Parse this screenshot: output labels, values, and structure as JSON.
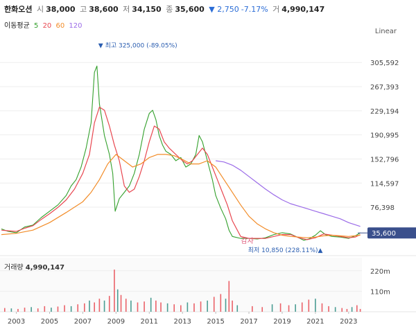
{
  "header": {
    "name": "한화오션",
    "open_label": "시",
    "open": "38,000",
    "high_label": "고",
    "high": "38,600",
    "low_label": "저",
    "low": "34,150",
    "close_label": "종",
    "close": "35,600",
    "change": "▼ 2,750",
    "change_pct": "-7.17%",
    "volume_label": "거",
    "volume": "4,990,147"
  },
  "ma_legend": {
    "label": "이동평균",
    "items": [
      {
        "text": "5",
        "color": "#33a02c"
      },
      {
        "text": "20",
        "color": "#e8464f"
      },
      {
        "text": "60",
        "color": "#f28c28"
      },
      {
        "text": "120",
        "color": "#9b6be8"
      }
    ]
  },
  "scale_label": "Linear",
  "colors": {
    "up": "#e8464f",
    "down": "#2a8c80",
    "current_tag": "#3a4f8c"
  },
  "chart_data": {
    "type": "line",
    "title": "",
    "y_ticks": [
      "305,592",
      "267,393",
      "229,194",
      "190,995",
      "152,796",
      "114,597",
      "76,398"
    ],
    "y_tick_values": [
      305592,
      267393,
      229194,
      190995,
      152796,
      114597,
      76398
    ],
    "ylim": [
      15000,
      330000
    ],
    "x_ticks": [
      "2003",
      "2005",
      "2007",
      "2009",
      "2011",
      "2013",
      "2015",
      "2017",
      "2019",
      "2021",
      "2023"
    ],
    "xlim": [
      2002.1,
      2023.8
    ],
    "current_price": 35600,
    "current_price_label": "35,600",
    "max_annotation": "최고 325,000 (-89.05%)",
    "max_point": {
      "x": 2007.85,
      "y": 325000
    },
    "min_annotation": "최저 10,850 (228.11%)",
    "min_point": {
      "x": 2020.2,
      "y": 10850
    },
    "event_label": "감자",
    "event_x": 2016.9,
    "series": [
      {
        "name": "5",
        "color": "#33a02c",
        "x": [
          2002.1,
          2002.5,
          2003.0,
          2003.5,
          2004.0,
          2004.5,
          2005.0,
          2005.5,
          2006.0,
          2006.3,
          2006.6,
          2006.9,
          2007.2,
          2007.5,
          2007.7,
          2007.85,
          2008.0,
          2008.3,
          2008.6,
          2008.8,
          2008.95,
          2009.2,
          2009.5,
          2009.8,
          2010.1,
          2010.4,
          2010.7,
          2011.0,
          2011.2,
          2011.4,
          2011.6,
          2011.8,
          2012.0,
          2012.3,
          2012.6,
          2012.9,
          2013.2,
          2013.5,
          2013.8,
          2014.0,
          2014.2,
          2014.5,
          2014.8,
          2015.0,
          2015.3,
          2015.6,
          2015.8,
          2016.0,
          2016.5,
          2017.0,
          2017.5,
          2018.0,
          2018.5,
          2019.0,
          2019.5,
          2020.0,
          2020.3,
          2020.6,
          2021.0,
          2021.3,
          2021.6,
          2022.0,
          2022.5,
          2023.0,
          2023.4,
          2023.7
        ],
        "values": [
          42000,
          38000,
          36000,
          45000,
          48000,
          60000,
          70000,
          80000,
          95000,
          110000,
          120000,
          140000,
          170000,
          210000,
          290000,
          300000,
          240000,
          190000,
          160000,
          130000,
          70000,
          90000,
          100000,
          110000,
          130000,
          160000,
          200000,
          225000,
          230000,
          215000,
          190000,
          175000,
          165000,
          160000,
          150000,
          155000,
          140000,
          145000,
          160000,
          190000,
          180000,
          150000,
          120000,
          95000,
          75000,
          58000,
          40000,
          30000,
          27000,
          27000,
          26000,
          28000,
          33000,
          36000,
          34000,
          28000,
          24000,
          26000,
          32000,
          39000,
          33000,
          30000,
          29000,
          27000,
          31000,
          35600
        ]
      },
      {
        "name": "20",
        "color": "#e8464f",
        "x": [
          2002.1,
          2002.5,
          2003.0,
          2003.5,
          2004.0,
          2004.5,
          2005.0,
          2005.5,
          2006.0,
          2006.5,
          2007.0,
          2007.4,
          2007.7,
          2008.0,
          2008.3,
          2008.6,
          2008.9,
          2009.2,
          2009.5,
          2009.8,
          2010.1,
          2010.4,
          2010.7,
          2011.0,
          2011.3,
          2011.6,
          2011.9,
          2012.2,
          2012.6,
          2013.0,
          2013.3,
          2013.6,
          2013.9,
          2014.2,
          2014.5,
          2014.8,
          2015.1,
          2015.4,
          2015.7,
          2016.0,
          2016.5,
          2017.0,
          2017.5,
          2018.0,
          2018.5,
          2019.0,
          2019.5,
          2020.0,
          2020.5,
          2021.0,
          2021.5,
          2022.0,
          2022.5,
          2023.0,
          2023.4,
          2023.7
        ],
        "values": [
          40000,
          39000,
          38000,
          43000,
          47000,
          57000,
          66000,
          76000,
          88000,
          105000,
          130000,
          160000,
          210000,
          235000,
          230000,
          205000,
          175000,
          150000,
          110000,
          100000,
          105000,
          125000,
          150000,
          180000,
          205000,
          200000,
          180000,
          170000,
          160000,
          150000,
          145000,
          150000,
          160000,
          170000,
          160000,
          140000,
          120000,
          100000,
          80000,
          55000,
          30000,
          27000,
          27000,
          27000,
          30000,
          33000,
          33000,
          28000,
          25000,
          28000,
          34000,
          32000,
          30000,
          28000,
          29000,
          33000
        ]
      },
      {
        "name": "60",
        "color": "#f28c28",
        "x": [
          2002.1,
          2003.0,
          2004.0,
          2005.0,
          2006.0,
          2007.0,
          2007.5,
          2008.0,
          2008.5,
          2009.0,
          2009.5,
          2010.0,
          2010.5,
          2011.0,
          2011.5,
          2012.0,
          2012.5,
          2013.0,
          2013.5,
          2014.0,
          2014.5,
          2015.0,
          2015.5,
          2016.0,
          2016.5,
          2017.0,
          2017.5,
          2018.0,
          2018.5,
          2019.0,
          2019.5,
          2020.0,
          2020.5,
          2021.0,
          2021.5,
          2022.0,
          2022.5,
          2023.0,
          2023.7
        ],
        "values": [
          33000,
          35000,
          40000,
          52000,
          68000,
          85000,
          100000,
          120000,
          145000,
          160000,
          150000,
          140000,
          145000,
          155000,
          160000,
          160000,
          158000,
          152000,
          145000,
          145000,
          150000,
          140000,
          120000,
          100000,
          80000,
          62000,
          50000,
          42000,
          36000,
          32000,
          30000,
          29000,
          28000,
          29000,
          31000,
          32000,
          31000,
          30000,
          32000
        ]
      },
      {
        "name": "120",
        "color": "#9b6be8",
        "x": [
          2015.0,
          2015.5,
          2016.0,
          2016.5,
          2017.0,
          2017.5,
          2018.0,
          2018.5,
          2019.0,
          2019.5,
          2020.0,
          2020.5,
          2021.0,
          2021.5,
          2022.0,
          2022.5,
          2023.0,
          2023.7
        ],
        "values": [
          150000,
          148000,
          143000,
          135000,
          125000,
          115000,
          105000,
          96000,
          88000,
          82000,
          78000,
          74000,
          70000,
          66000,
          62000,
          58000,
          52000,
          46000
        ]
      }
    ],
    "volume": {
      "label": "거래량",
      "value": "4,990,147",
      "y_ticks": [
        "220m",
        "110m"
      ],
      "y_tick_values": [
        220,
        110
      ],
      "ylim": [
        0,
        260
      ],
      "bars": [
        [
          2002.3,
          20
        ],
        [
          2002.7,
          18
        ],
        [
          2003.1,
          15
        ],
        [
          2003.5,
          22
        ],
        [
          2003.9,
          25
        ],
        [
          2004.3,
          18
        ],
        [
          2004.7,
          30
        ],
        [
          2005.1,
          22
        ],
        [
          2005.5,
          28
        ],
        [
          2005.9,
          35
        ],
        [
          2006.3,
          30
        ],
        [
          2006.7,
          40
        ],
        [
          2007.1,
          45
        ],
        [
          2007.4,
          60
        ],
        [
          2007.7,
          50
        ],
        [
          2008.0,
          70
        ],
        [
          2008.3,
          60
        ],
        [
          2008.6,
          85
        ],
        [
          2008.9,
          226
        ],
        [
          2009.1,
          120
        ],
        [
          2009.3,
          90
        ],
        [
          2009.6,
          70
        ],
        [
          2009.9,
          60
        ],
        [
          2010.3,
          50
        ],
        [
          2010.7,
          55
        ],
        [
          2011.1,
          75
        ],
        [
          2011.4,
          60
        ],
        [
          2011.7,
          50
        ],
        [
          2012.1,
          45
        ],
        [
          2012.5,
          40
        ],
        [
          2012.9,
          35
        ],
        [
          2013.3,
          50
        ],
        [
          2013.7,
          45
        ],
        [
          2014.1,
          55
        ],
        [
          2014.5,
          60
        ],
        [
          2014.9,
          80
        ],
        [
          2015.3,
          95
        ],
        [
          2015.6,
          70
        ],
        [
          2015.8,
          165
        ],
        [
          2016.0,
          60
        ],
        [
          2016.3,
          35
        ],
        [
          2017.2,
          30
        ],
        [
          2017.8,
          25
        ],
        [
          2018.4,
          40
        ],
        [
          2018.9,
          45
        ],
        [
          2019.4,
          35
        ],
        [
          2019.8,
          40
        ],
        [
          2020.2,
          50
        ],
        [
          2020.6,
          65
        ],
        [
          2021.0,
          70
        ],
        [
          2021.4,
          45
        ],
        [
          2021.8,
          30
        ],
        [
          2022.2,
          25
        ],
        [
          2022.6,
          20
        ],
        [
          2022.9,
          15
        ],
        [
          2023.2,
          25
        ],
        [
          2023.5,
          35
        ],
        [
          2023.7,
          15
        ]
      ]
    }
  }
}
